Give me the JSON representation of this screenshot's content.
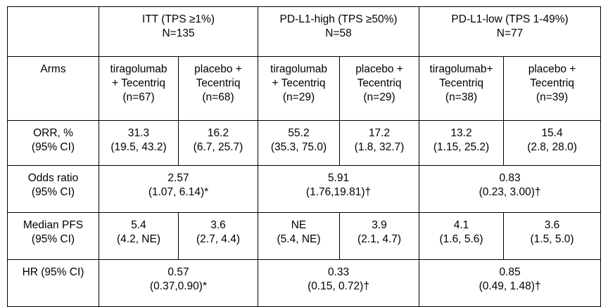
{
  "groups": [
    {
      "line1": "ITT (TPS ≥1%)",
      "line2": "N=135"
    },
    {
      "line1": "PD-L1-high (TPS ≥50%)",
      "line2": "N=58"
    },
    {
      "line1": "PD-L1-low (TPS 1-49%)",
      "line2": "N=77"
    }
  ],
  "arms": {
    "label": "Arms",
    "cells": [
      {
        "l1": "tiragolumab",
        "l2": "+ Tecentriq",
        "l3": "(n=67)"
      },
      {
        "l1": "placebo +",
        "l2": "Tecentriq",
        "l3": "(n=68)"
      },
      {
        "l1": "tiragolumab",
        "l2": "+ Tecentriq",
        "l3": "(n=29)"
      },
      {
        "l1": "placebo +",
        "l2": "Tecentriq",
        "l3": "(n=29)"
      },
      {
        "l1": "tiragolumab+",
        "l2": "Tecentriq",
        "l3": "(n=38)"
      },
      {
        "l1": "placebo +",
        "l2": "Tecentriq",
        "l3": "(n=39)"
      }
    ]
  },
  "orr": {
    "label1": "ORR, %",
    "label2": "(95% CI)",
    "cells": [
      {
        "v": "31.3",
        "ci": "(19.5, 43.2)"
      },
      {
        "v": "16.2",
        "ci": "(6.7, 25.7)"
      },
      {
        "v": "55.2",
        "ci": "(35.3, 75.0)"
      },
      {
        "v": "17.2",
        "ci": "(1.8, 32.7)"
      },
      {
        "v": "13.2",
        "ci": "(1.15, 25.2)"
      },
      {
        "v": "15.4",
        "ci": "(2.8, 28.0)"
      }
    ]
  },
  "odds": {
    "label1": "Odds ratio",
    "label2": "(95% CI)",
    "cells": [
      {
        "v": "2.57",
        "ci": "(1.07, 6.14)*"
      },
      {
        "v": "5.91",
        "ci": "(1.76,19.81)†"
      },
      {
        "v": "0.83",
        "ci": "(0.23, 3.00)†"
      }
    ]
  },
  "pfs": {
    "label1": "Median PFS",
    "label2": "(95% CI)",
    "cells": [
      {
        "v": "5.4",
        "ci": "(4.2, NE)"
      },
      {
        "v": "3.6",
        "ci": "(2.7, 4.4)"
      },
      {
        "v": "NE",
        "ci": "(5.4, NE)"
      },
      {
        "v": "3.9",
        "ci": "(2.1, 4.7)"
      },
      {
        "v": "4.1",
        "ci": "(1.6, 5.6)"
      },
      {
        "v": "3.6",
        "ci": "(1.5, 5.0)"
      }
    ]
  },
  "hr": {
    "label1": "HR (95% CI)",
    "cells": [
      {
        "v": "0.57",
        "ci": "(0.37,0.90)*"
      },
      {
        "v": "0.33",
        "ci": "(0.15, 0.72)†"
      },
      {
        "v": "0.85",
        "ci": "(0.49, 1.48)†"
      }
    ]
  }
}
